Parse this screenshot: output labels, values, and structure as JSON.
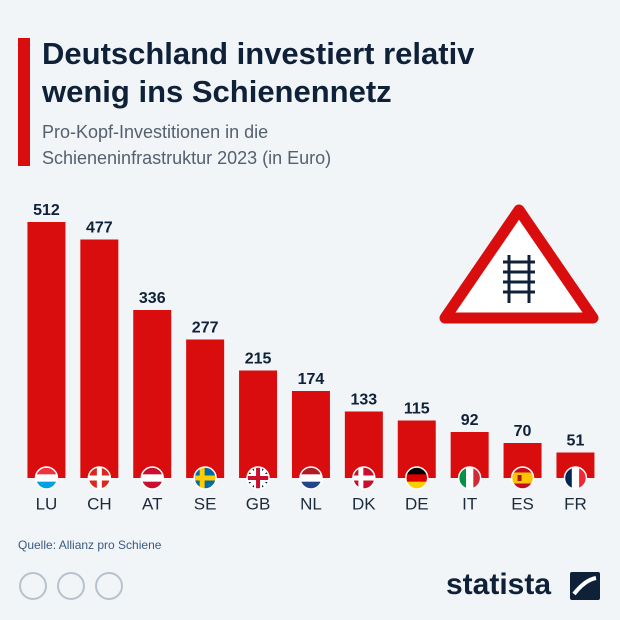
{
  "chart_data": {
    "type": "bar",
    "title_lines": [
      "Deutschland investiert relativ",
      "wenig ins Schienennetz"
    ],
    "subtitle_lines": [
      "Pro-Kopf-Investitionen in die",
      "Schieneninfrastruktur 2023 (in Euro)"
    ],
    "categories": [
      "LU",
      "CH",
      "AT",
      "SE",
      "GB",
      "NL",
      "DK",
      "DE",
      "IT",
      "ES",
      "FR"
    ],
    "values": [
      512,
      477,
      336,
      277,
      215,
      174,
      133,
      115,
      92,
      70,
      51
    ],
    "color": "#d90d0d",
    "source": "Quelle: Allianz pro Schiene",
    "brand": "statista"
  }
}
